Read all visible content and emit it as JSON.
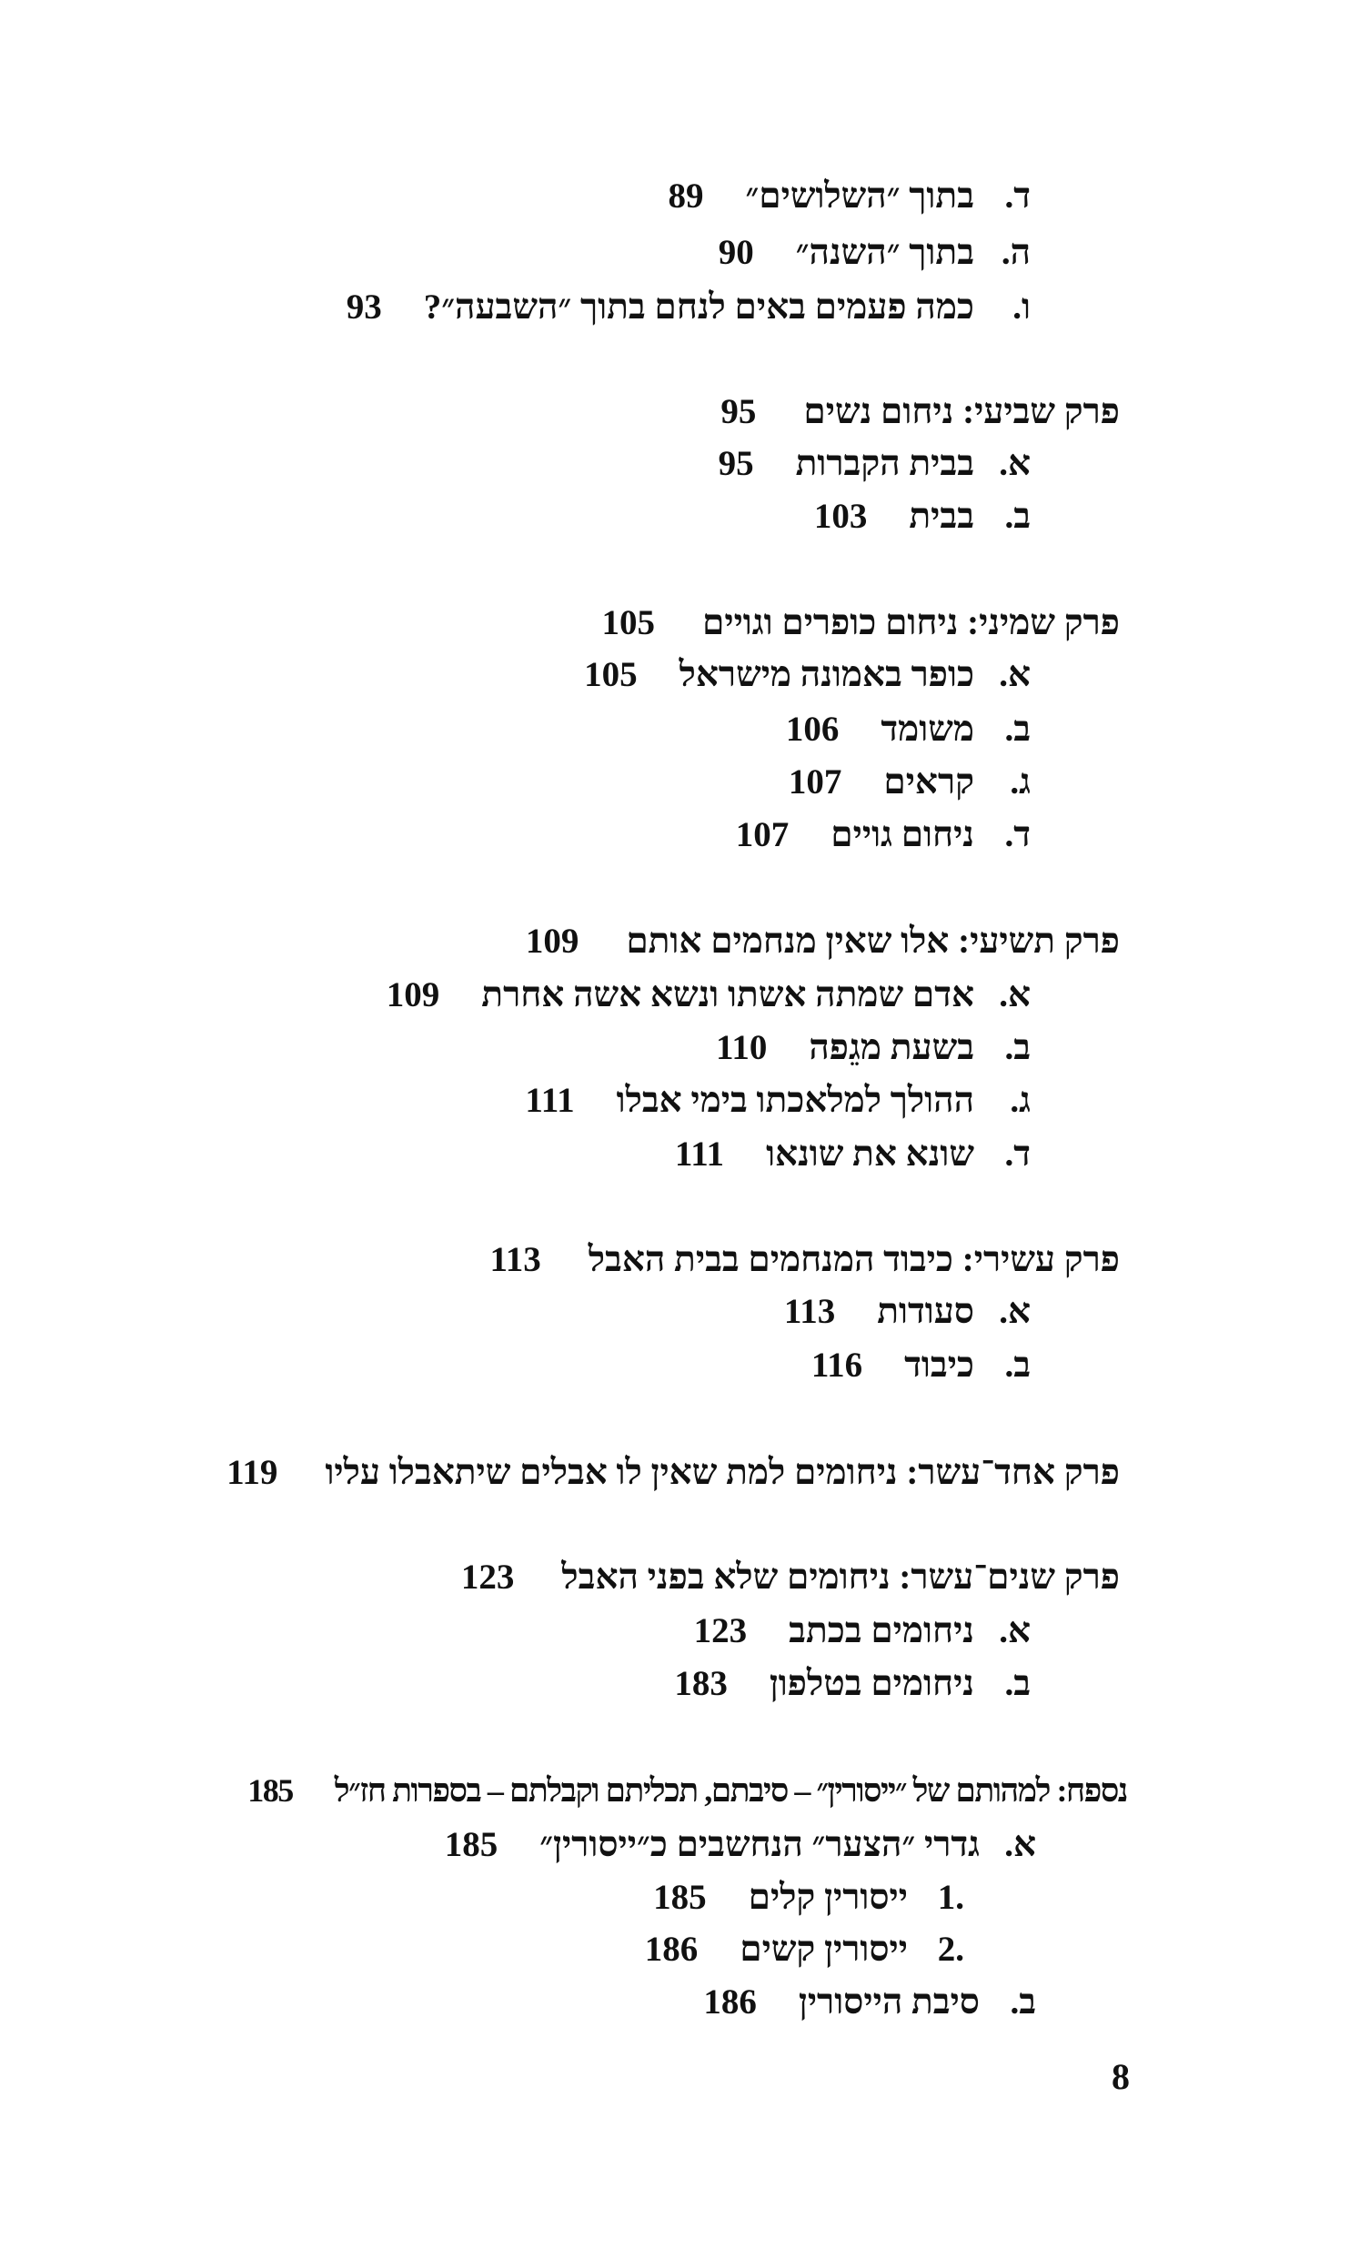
{
  "entries": [
    {
      "type": "item",
      "marker": "ד.",
      "title": "בתוך ״השלושים״",
      "page": "89"
    },
    {
      "type": "item",
      "marker": "ה.",
      "title": "בתוך ״השנה״",
      "page": "90"
    },
    {
      "type": "item",
      "marker": "ו.",
      "title": "כמה פעמים באים לנחם בתוך ״השבעה״?",
      "page": "93"
    },
    {
      "type": "heading",
      "marker": "",
      "title": "פרק שביעי: ניחום נשים",
      "page": "95"
    },
    {
      "type": "item",
      "marker": "א.",
      "title": "בבית הקברות",
      "page": "95"
    },
    {
      "type": "item",
      "marker": "ב.",
      "title": "בבית",
      "page": "103"
    },
    {
      "type": "heading",
      "marker": "",
      "title": "פרק שמיני: ניחום כופרים וגויים",
      "page": "105"
    },
    {
      "type": "item",
      "marker": "א.",
      "title": "כופר באמונה מישראל",
      "page": "105"
    },
    {
      "type": "item",
      "marker": "ב.",
      "title": "משומד",
      "page": "106"
    },
    {
      "type": "item",
      "marker": "ג.",
      "title": "קראים",
      "page": "107"
    },
    {
      "type": "item",
      "marker": "ד.",
      "title": "ניחום גויים",
      "page": "107"
    },
    {
      "type": "heading",
      "marker": "",
      "title": "פרק תשיעי: אלו שאין מנחמים אותם",
      "page": "109"
    },
    {
      "type": "item",
      "marker": "א.",
      "title": "אדם שמתה אשתו ונשא אשה אחרת",
      "page": "109"
    },
    {
      "type": "item",
      "marker": "ב.",
      "title": "בשעת מגֵפה",
      "page": "110"
    },
    {
      "type": "item",
      "marker": "ג.",
      "title": "ההולך למלאכתו בימי אבלו",
      "page": "111"
    },
    {
      "type": "item",
      "marker": "ד.",
      "title": "שונא את שונאו",
      "page": "111"
    },
    {
      "type": "heading",
      "marker": "",
      "title": "פרק עשירי: כיבוד המנחמים בבית האבל",
      "page": "113"
    },
    {
      "type": "item",
      "marker": "א.",
      "title": "סעודות",
      "page": "113"
    },
    {
      "type": "item",
      "marker": "ב.",
      "title": "כיבוד",
      "page": "116"
    },
    {
      "type": "heading",
      "marker": "",
      "title": "פרק אחד־עשר: ניחומים למת שאין לו אבלים שיתאבלו עליו",
      "page": "119"
    },
    {
      "type": "heading",
      "marker": "",
      "title": "פרק שנים־עשר: ניחומים שלא בפני האבל",
      "page": "123"
    },
    {
      "type": "item",
      "marker": "א.",
      "title": "ניחומים בכתב",
      "page": "123"
    },
    {
      "type": "item",
      "marker": "ב.",
      "title": "ניחומים בטלפון",
      "page": "183"
    },
    {
      "type": "appendix",
      "marker": "",
      "title": "נספח: למהותם של ״ייסורין״ – סיבתם, תכליתם וקבלתם – בספרות חז״ל",
      "page": "185"
    },
    {
      "type": "item",
      "marker": "א.",
      "title": "גדרי ״הצער״ הנחשבים כ״ייסורין״",
      "page": "185"
    },
    {
      "type": "subitem",
      "marker": ".1",
      "title": "ייסורין קלים",
      "page": "185"
    },
    {
      "type": "subitem",
      "marker": ".2",
      "title": "ייסורין קשים",
      "page": "186"
    },
    {
      "type": "item",
      "marker": "ב.",
      "title": "סיבת הייסורין",
      "page": "186"
    }
  ],
  "folio": "8"
}
